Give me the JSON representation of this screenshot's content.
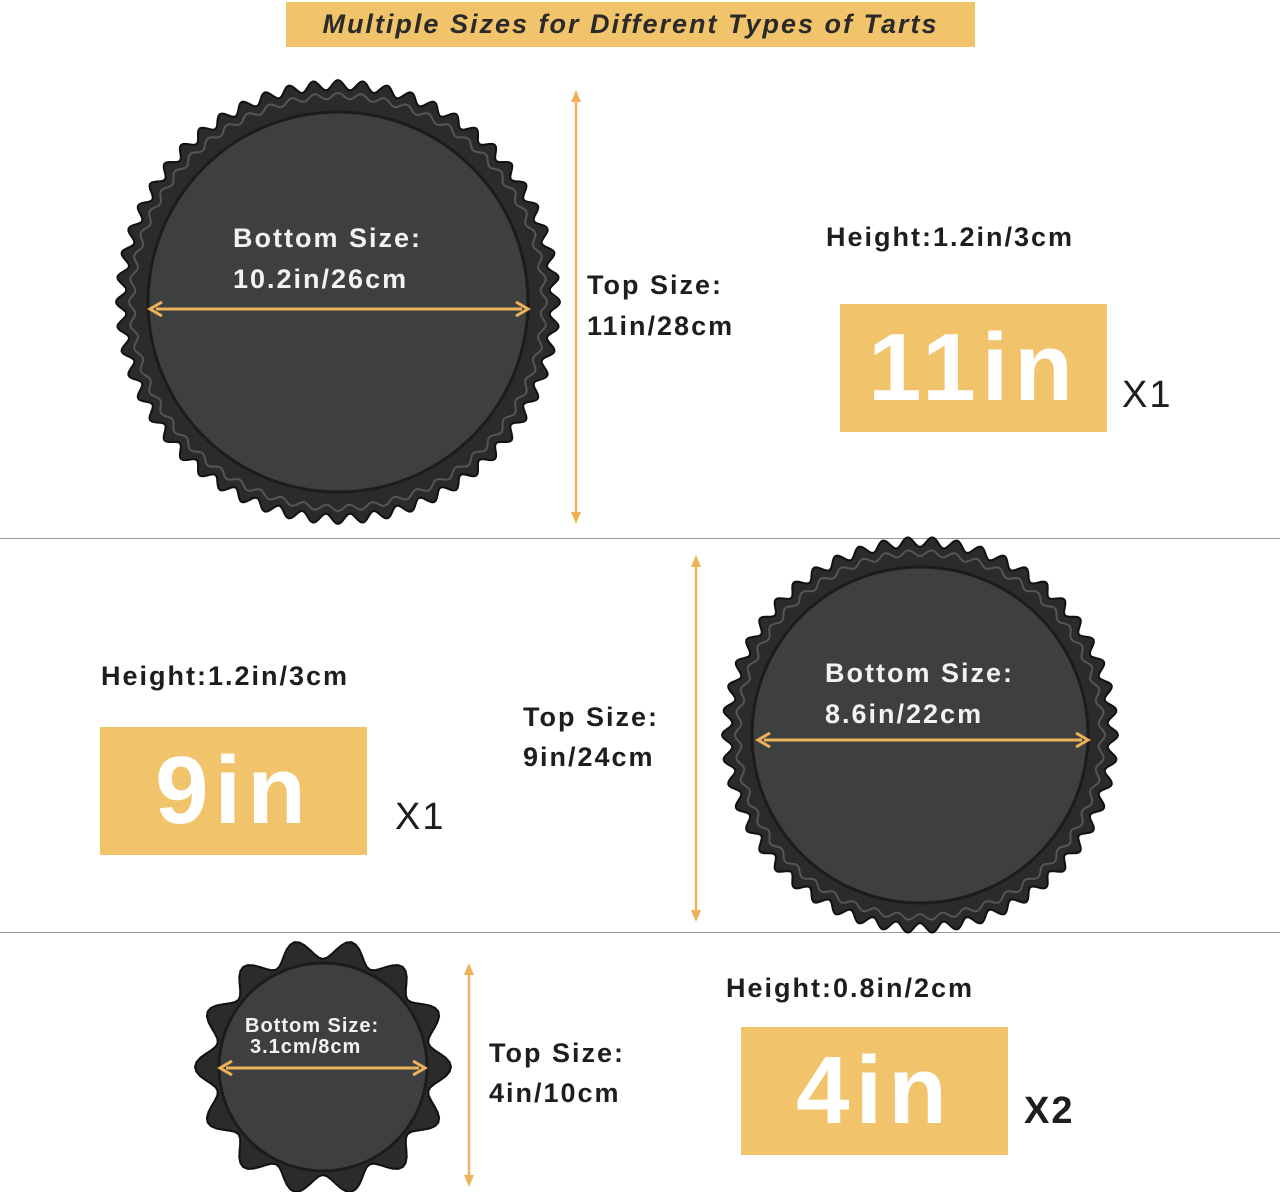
{
  "title": "Multiple Sizes for Different Types of Tarts",
  "colors": {
    "accent": "#f1c46b",
    "pan": "#2b2b2b",
    "pan_bottom": "#3e3f41",
    "arrow": "#eeb25a"
  },
  "pans": [
    {
      "bottom_label": "Bottom Size:",
      "bottom_value": "10.2in/26cm",
      "top_label": "Top Size:",
      "top_value": "11in/28cm",
      "height": "Height:1.2in/3cm",
      "size": "11in",
      "quantity": "X1"
    },
    {
      "bottom_label": "Bottom Size:",
      "bottom_value": "8.6in/22cm",
      "top_label": "Top Size:",
      "top_value": "9in/24cm",
      "height": "Height:1.2in/3cm",
      "size": "9in",
      "quantity": "X1"
    },
    {
      "bottom_label": "Bottom Size:",
      "bottom_value": "3.1cm/8cm",
      "top_label": "Top Size:",
      "top_value": "4in/10cm",
      "height": "Height:0.8in/2cm",
      "size": "4in",
      "quantity": "X2"
    }
  ]
}
